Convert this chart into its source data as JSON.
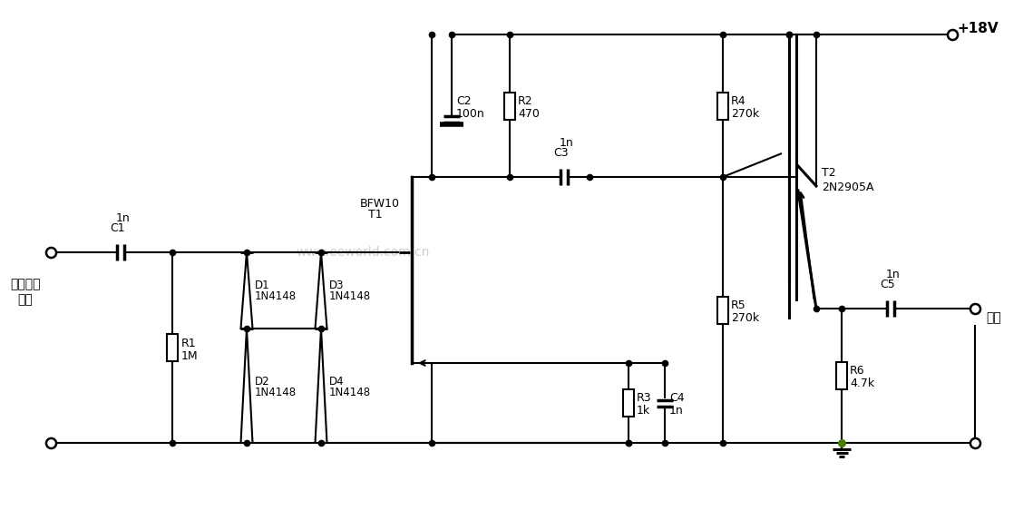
{
  "bg": "#ffffff",
  "lc": "#000000",
  "green": "#4a7c00",
  "watermark": "www.eeworld.com.cn",
  "power": "+18V",
  "input_line1": "天线信号",
  "input_line2": "输入",
  "output_label": "输出",
  "components": {
    "C1": "1n",
    "C2": "100n",
    "C3": "1n",
    "C4": "1n",
    "C5": "1n",
    "R1": "1M",
    "R2": "470",
    "R3": "1k",
    "R4": "270k",
    "R5": "270k",
    "R6": "4.7k",
    "D1": "1N4148",
    "D2": "1N4148",
    "D3": "1N4148",
    "D4": "1N4148",
    "T1": "BFW10",
    "T2": "2N2905A"
  }
}
